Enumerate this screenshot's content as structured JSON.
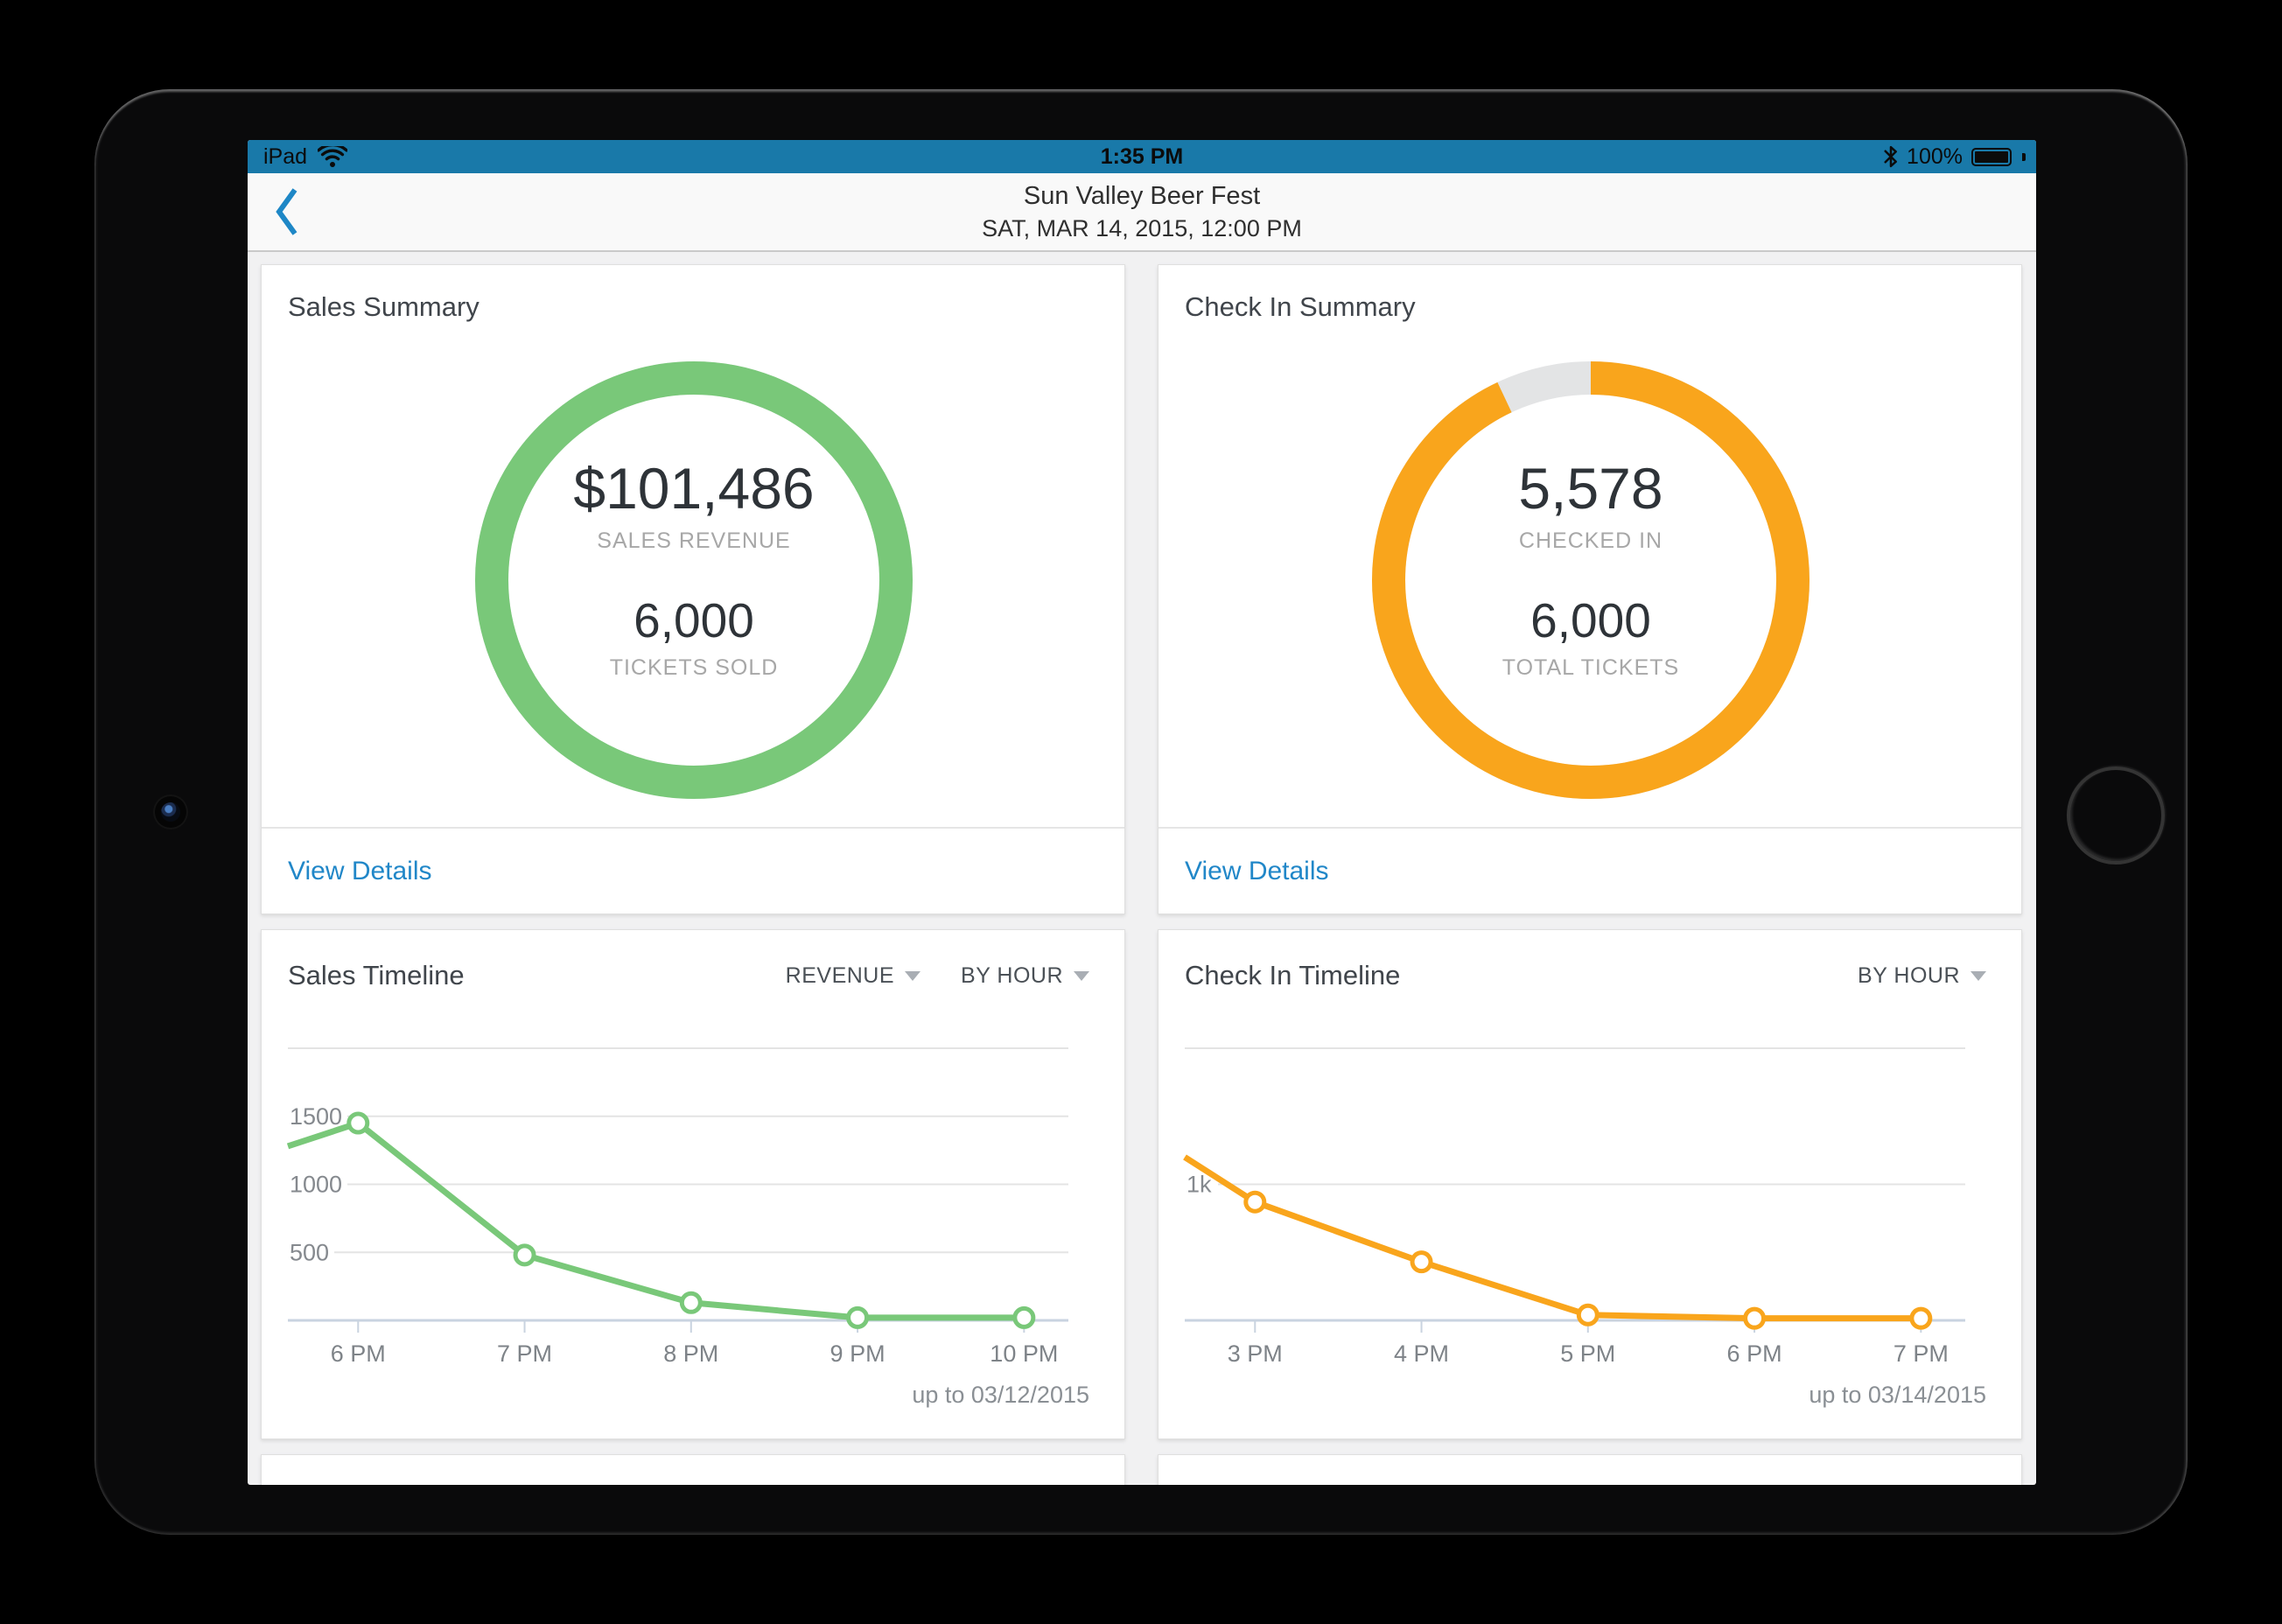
{
  "status_bar": {
    "carrier": "iPad",
    "time": "1:35 PM",
    "battery": "100%"
  },
  "nav": {
    "title": "Sun Valley Beer Fest",
    "subtitle": "SAT, MAR 14, 2015, 12:00 PM"
  },
  "colors": {
    "status_bar_blue": "#1979A9",
    "link_blue": "#2187C8",
    "sales_green": "#79C879",
    "checkin_orange": "#F9A51C",
    "ring_track_gray": "#E3E4E5"
  },
  "cards": {
    "sales_summary": {
      "title": "Sales Summary",
      "primary_value": "$101,486",
      "primary_label": "SALES REVENUE",
      "secondary_value": "6,000",
      "secondary_label": "TICKETS SOLD",
      "link_label": "View Details",
      "ring": {
        "color": "#79C879",
        "track_color": "#E3E4E5",
        "fraction": 1
      }
    },
    "checkin_summary": {
      "title": "Check In Summary",
      "primary_value": "5,578",
      "primary_label": "CHECKED IN",
      "secondary_value": "6,000",
      "secondary_label": "TOTAL TICKETS",
      "link_label": "View Details",
      "ring": {
        "color": "#F9A51C",
        "track_color": "#E3E4E5",
        "fraction": 0.9297
      }
    },
    "sales_timeline": {
      "title": "Sales Timeline",
      "filter_metric": "REVENUE",
      "filter_interval": "BY HOUR",
      "footnote": "up to 03/12/2015"
    },
    "checkin_timeline": {
      "title": "Check In Timeline",
      "filter_interval": "BY HOUR",
      "footnote": "up to 03/14/2015"
    }
  },
  "chart_data": [
    {
      "type": "line",
      "title": "Sales Timeline",
      "metric": "Revenue",
      "interval": "By hour",
      "color": "#79C879",
      "categories": [
        "6 PM",
        "7 PM",
        "8 PM",
        "9 PM",
        "10 PM"
      ],
      "values": [
        1450,
        480,
        130,
        20,
        20
      ],
      "edge_start_value": 1280,
      "ylim": [
        0,
        2000
      ],
      "yticks": [
        {
          "value": 2000,
          "label": ""
        },
        {
          "value": 1500,
          "label": "1500"
        },
        {
          "value": 1000,
          "label": "1000"
        },
        {
          "value": 500,
          "label": "500"
        }
      ],
      "grid": true,
      "legend": false,
      "footnote": "up to 03/12/2015"
    },
    {
      "type": "line",
      "title": "Check In Timeline",
      "metric": "Check ins",
      "interval": "By hour",
      "color": "#F9A51C",
      "categories": [
        "3 PM",
        "4 PM",
        "5 PM",
        "6 PM",
        "7 PM"
      ],
      "values": [
        870,
        430,
        40,
        15,
        15
      ],
      "edge_start_value": 1200,
      "ylim": [
        0,
        2000
      ],
      "yticks": [
        {
          "value": 2000,
          "label": ""
        },
        {
          "value": 1000,
          "label": "1k"
        }
      ],
      "grid": true,
      "legend": false,
      "footnote": "up to 03/14/2015"
    }
  ]
}
